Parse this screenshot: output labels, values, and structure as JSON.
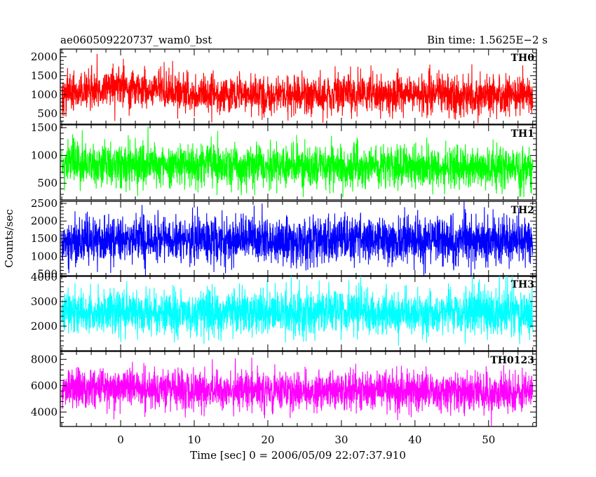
{
  "chart_data": {
    "type": "line",
    "title": "ae060509220737_wam0_bst",
    "bin_time_label": "Bin time: 1.5625E−2 s",
    "ylabel": "Counts/sec",
    "xlabel": "Time [sec] 0 = 2006/05/09 22:07:37.910",
    "xlim": [
      -8.2,
      56.5
    ],
    "x_ticks": [
      0,
      10,
      20,
      30,
      40,
      50
    ],
    "x_tick_labels": [
      "0",
      "10",
      "20",
      "30",
      "40",
      "50"
    ],
    "data_x_range": [
      -8.0,
      56.0
    ],
    "bin_time": 0.015625,
    "grid": false,
    "panels": [
      {
        "name": "TH0",
        "color": "#ff0000",
        "ylim": [
          220,
          2200
        ],
        "y_ticks": [
          500,
          1000,
          1500,
          2000
        ],
        "y_tick_labels": [
          "500",
          "1000",
          "1500",
          "2000"
        ],
        "mean": 1000,
        "spread": 250,
        "clip_max": 2200,
        "clip_min": 250,
        "segments": [
          {
            "x": -8,
            "mean": 1000
          },
          {
            "x": -3,
            "mean": 1150
          },
          {
            "x": 0,
            "mean": 1250
          },
          {
            "x": 3,
            "mean": 1100
          },
          {
            "x": 10,
            "mean": 1000
          },
          {
            "x": 25,
            "mean": 1020
          },
          {
            "x": 45,
            "mean": 1000
          },
          {
            "x": 56,
            "mean": 980
          }
        ]
      },
      {
        "name": "TH1",
        "color": "#00ff00",
        "ylim": [
          200,
          1550
        ],
        "y_ticks": [
          500,
          1000,
          1500
        ],
        "y_tick_labels": [
          "500",
          "1000",
          "1500"
        ],
        "mean": 800,
        "spread": 190,
        "clip_max": 1550,
        "clip_min": 250,
        "segments": [
          {
            "x": -8,
            "mean": 800
          },
          {
            "x": 0,
            "mean": 820
          },
          {
            "x": 30,
            "mean": 800
          },
          {
            "x": 56,
            "mean": 790
          }
        ]
      },
      {
        "name": "TH2",
        "color": "#0000ff",
        "ylim": [
          430,
          2560
        ],
        "y_ticks": [
          500,
          1000,
          1500,
          2000,
          2500
        ],
        "y_tick_labels": [
          "500",
          "1000",
          "1500",
          "2000",
          "2500"
        ],
        "mean": 1450,
        "spread": 330,
        "clip_max": 2560,
        "clip_min": 450,
        "segments": [
          {
            "x": -8,
            "mean": 1450
          },
          {
            "x": 20,
            "mean": 1460
          },
          {
            "x": 56,
            "mean": 1440
          }
        ]
      },
      {
        "name": "TH3",
        "color": "#00ffff",
        "ylim": [
          1000,
          4050
        ],
        "y_ticks": [
          2000,
          3000,
          4000
        ],
        "y_tick_labels": [
          "2000",
          "3000",
          "4000"
        ],
        "mean": 2550,
        "spread": 450,
        "clip_max": 4050,
        "clip_min": 1050,
        "segments": [
          {
            "x": -8,
            "mean": 2550
          },
          {
            "x": 28,
            "mean": 2560
          },
          {
            "x": 56,
            "mean": 2540
          }
        ]
      },
      {
        "name": "TH0123",
        "color": "#ff00ff",
        "ylim": [
          2900,
          8600
        ],
        "y_ticks": [
          4000,
          6000,
          8000
        ],
        "y_tick_labels": [
          "4000",
          "6000",
          "8000"
        ],
        "mean": 5600,
        "spread": 750,
        "clip_max": 8600,
        "clip_min": 2900,
        "segments": [
          {
            "x": -8,
            "mean": 5600
          },
          {
            "x": 0,
            "mean": 5900
          },
          {
            "x": 10,
            "mean": 5700
          },
          {
            "x": 56,
            "mean": 5500
          }
        ]
      }
    ]
  }
}
